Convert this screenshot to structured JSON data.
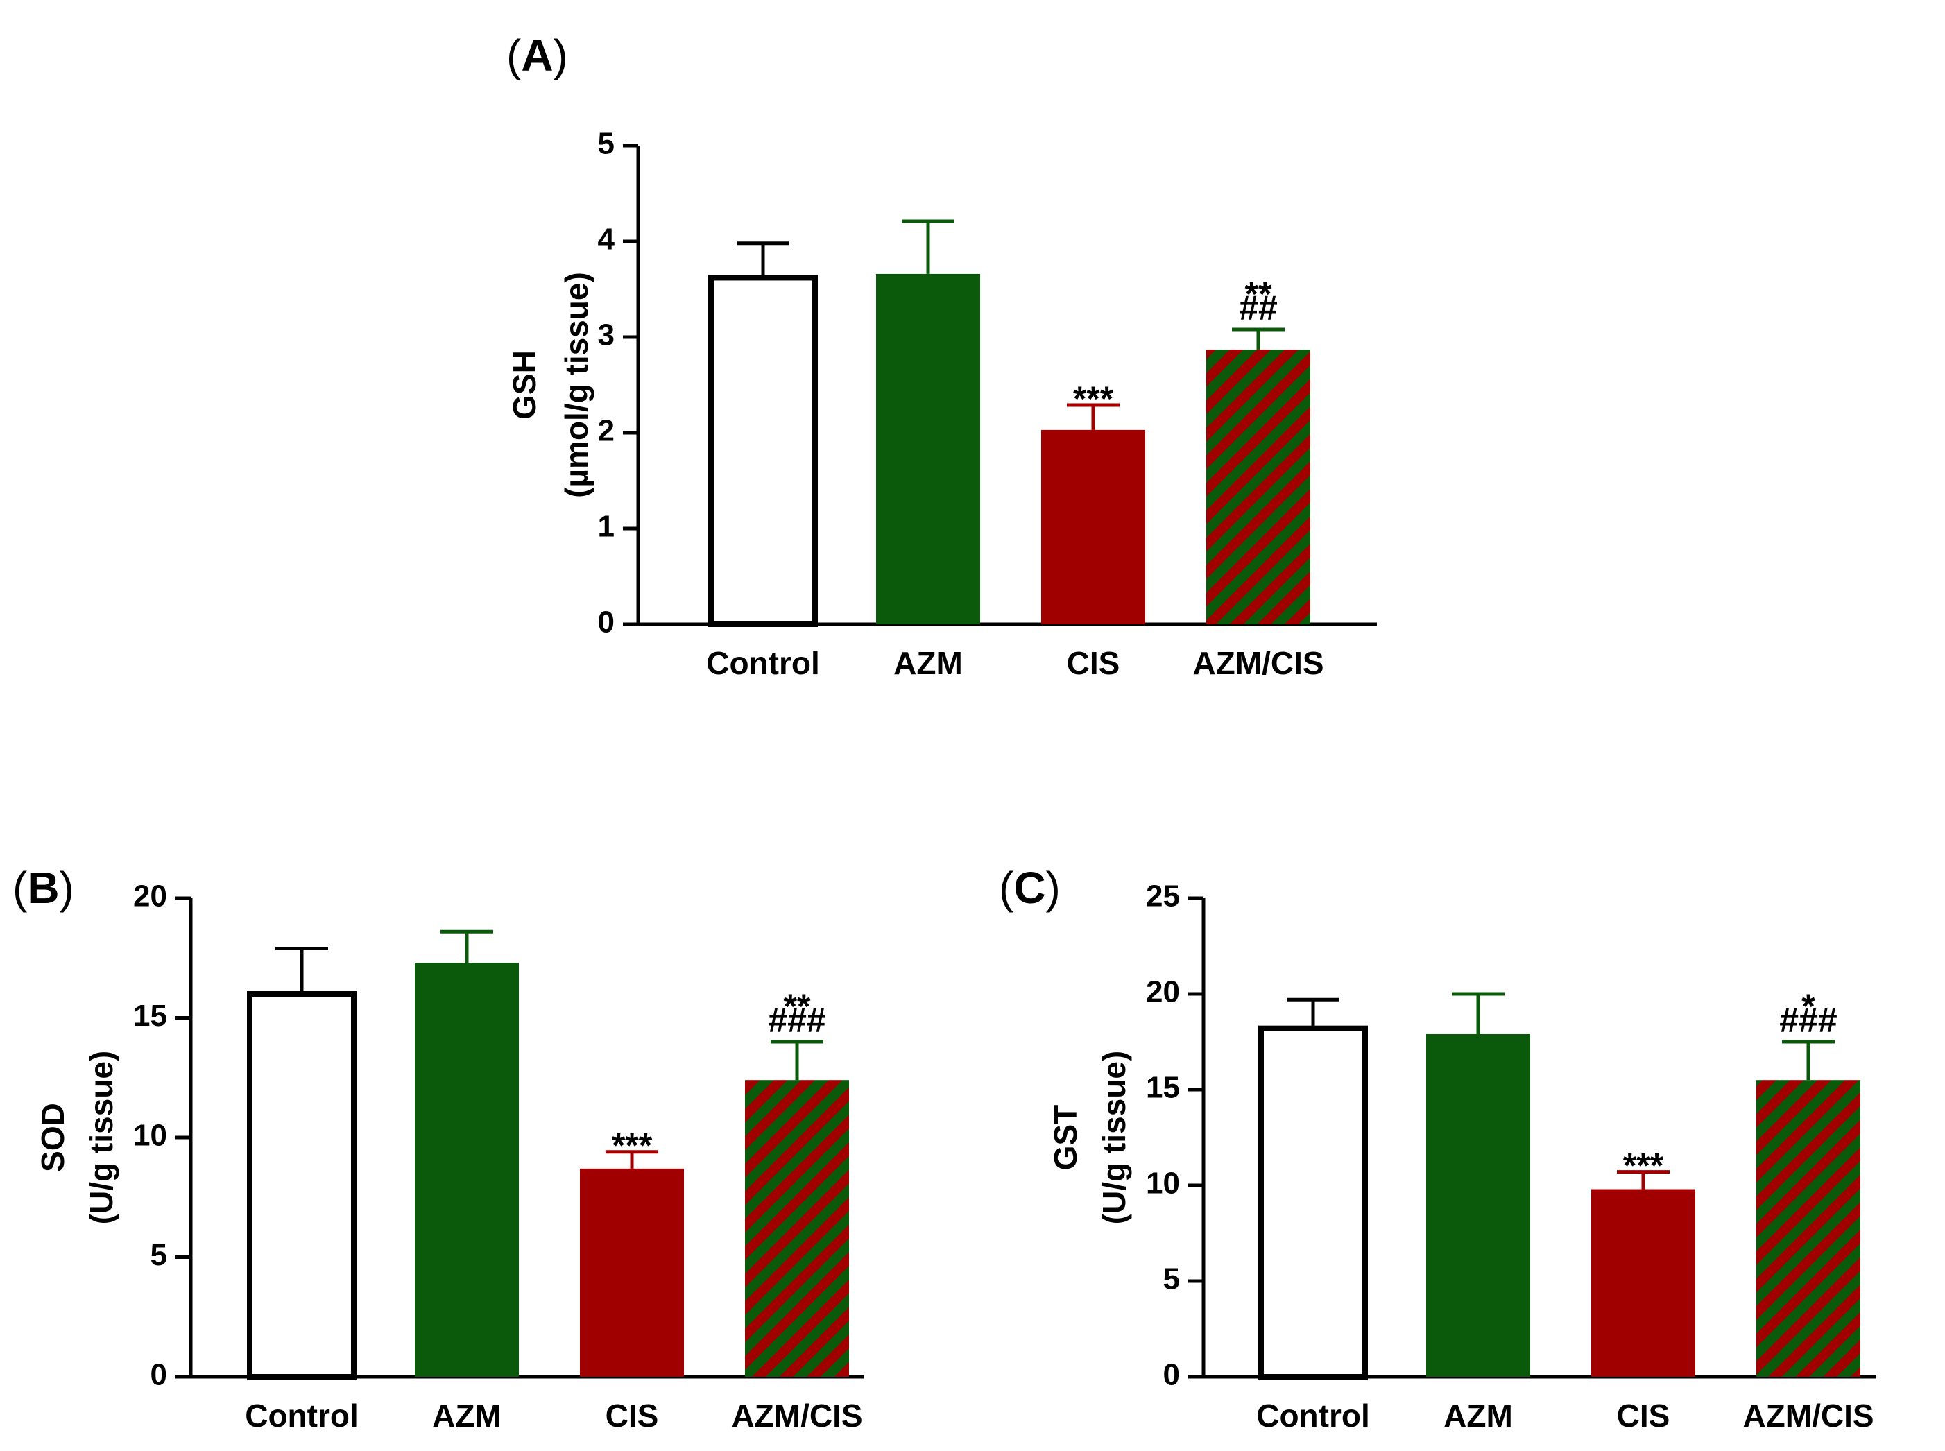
{
  "colors": {
    "control_fill": "#ffffff",
    "azm": "#0b5a0b",
    "cis": "#a00000",
    "axis": "#000000"
  },
  "chart_data": [
    {
      "id": "A",
      "panel_label": "(A)",
      "panel_letter": "A",
      "type": "bar",
      "title": "",
      "categories": [
        "Control",
        "AZM",
        "CIS",
        "AZM/CIS"
      ],
      "values": [
        3.62,
        3.66,
        2.03,
        2.87
      ],
      "errors": [
        0.36,
        0.55,
        0.26,
        0.21
      ],
      "annotations": [
        [],
        [],
        [
          "***"
        ],
        [
          "**",
          "##"
        ]
      ],
      "ylabel": "GSH",
      "ylabel_unit": "(µmol/g tissue)",
      "ylim": [
        0,
        5
      ],
      "yticks": [
        0,
        1,
        2,
        3,
        4,
        5
      ],
      "grid": false
    },
    {
      "id": "B",
      "panel_label": "(B)",
      "panel_letter": "B",
      "type": "bar",
      "title": "",
      "categories": [
        "Control",
        "AZM",
        "CIS",
        "AZM/CIS"
      ],
      "values": [
        16.0,
        17.3,
        8.7,
        12.4
      ],
      "errors": [
        1.9,
        1.3,
        0.7,
        1.6
      ],
      "annotations": [
        [],
        [],
        [
          "***"
        ],
        [
          "**",
          "###"
        ]
      ],
      "ylabel": "SOD",
      "ylabel_unit": "(U/g tissue)",
      "ylim": [
        0,
        20
      ],
      "yticks": [
        0,
        5,
        10,
        15,
        20
      ],
      "grid": false
    },
    {
      "id": "C",
      "panel_label": "(C)",
      "panel_letter": "C",
      "type": "bar",
      "title": "",
      "categories": [
        "Control",
        "AZM",
        "CIS",
        "AZM/CIS"
      ],
      "values": [
        18.2,
        17.9,
        9.8,
        15.5
      ],
      "errors": [
        1.5,
        2.1,
        0.9,
        2.0
      ],
      "annotations": [
        [],
        [],
        [
          "***"
        ],
        [
          "*",
          "###"
        ]
      ],
      "ylabel": "GST",
      "ylabel_unit": "(U/g tissue)",
      "ylim": [
        0,
        25
      ],
      "yticks": [
        0,
        5,
        10,
        15,
        20,
        25
      ],
      "grid": false
    }
  ]
}
